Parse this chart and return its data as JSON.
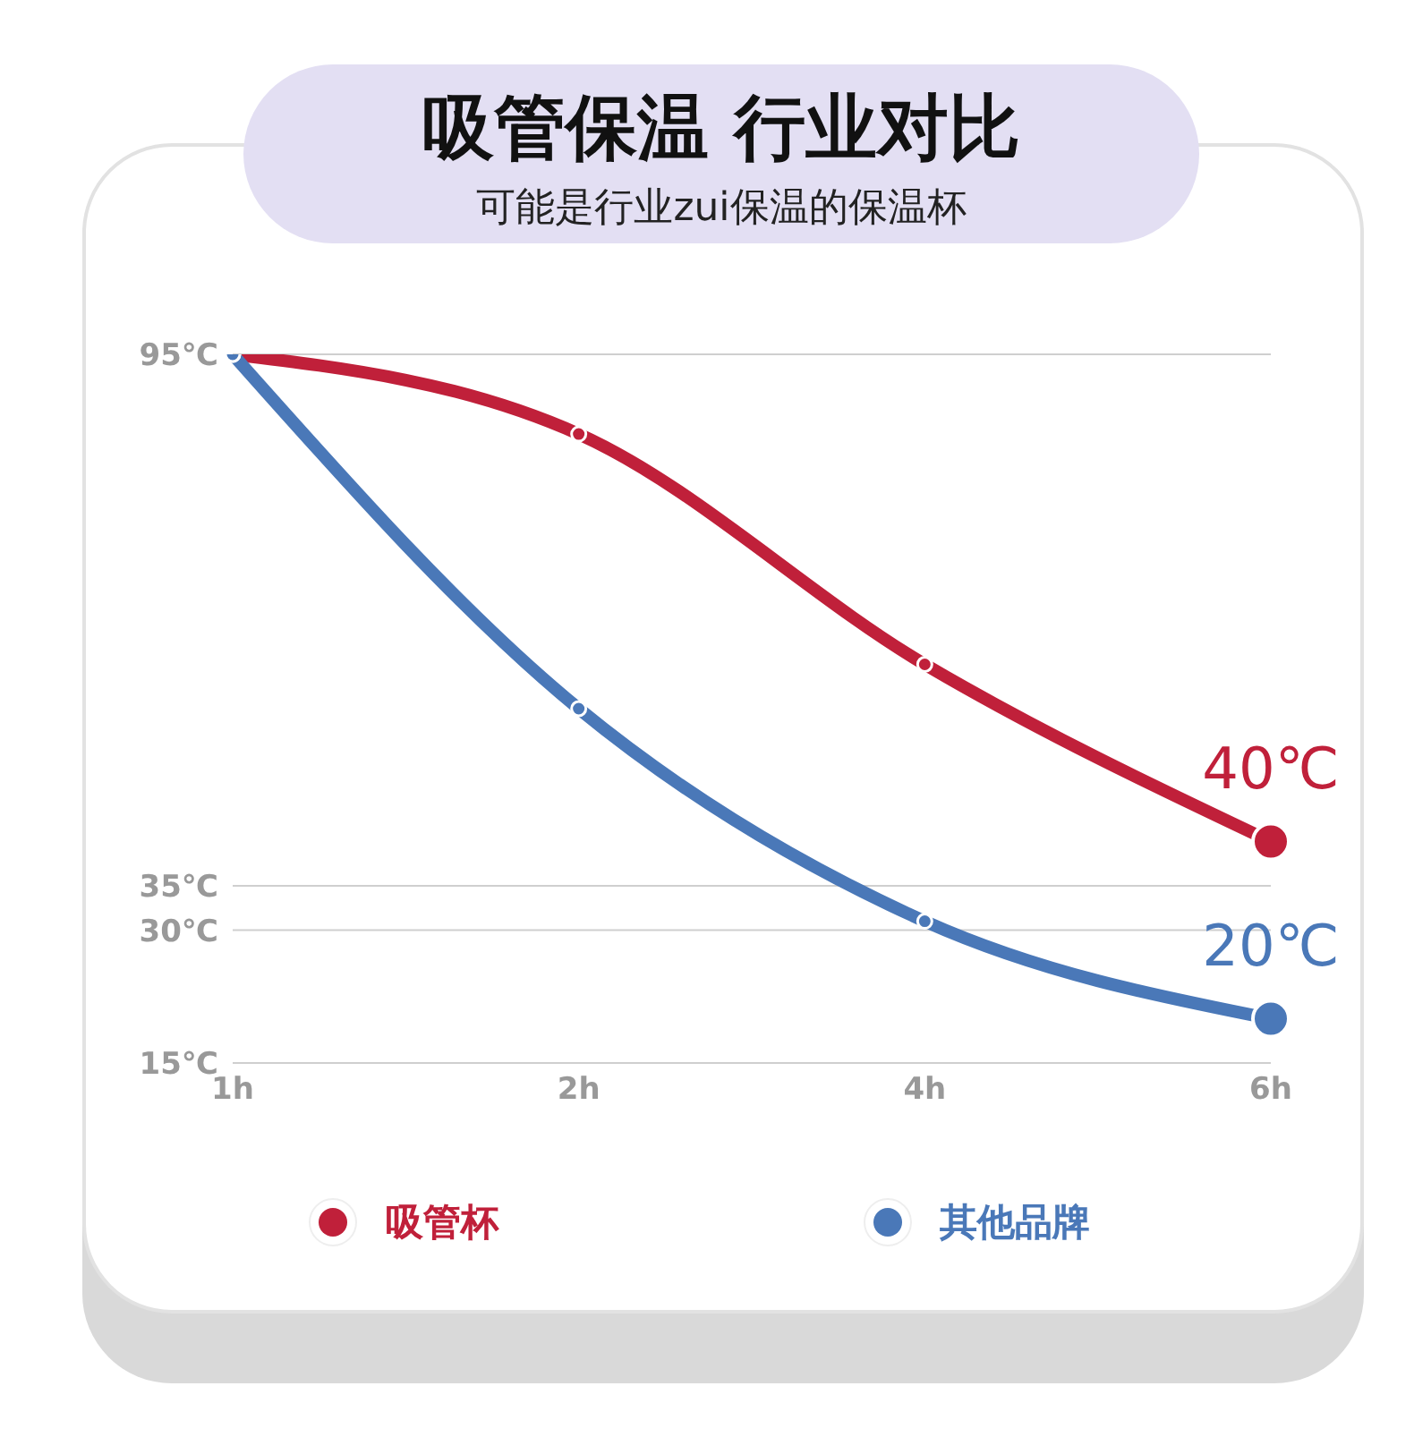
{
  "chart_data": {
    "type": "line",
    "title": "吸管保温 行业对比",
    "subtitle": "可能是行业zui保温的保温杯",
    "categories": [
      "1h",
      "2h",
      "4h",
      "6h"
    ],
    "series": [
      {
        "name": "吸管杯",
        "color": "#c0203a",
        "values": [
          95,
          86,
          60,
          40
        ],
        "value_labels": [
          null,
          null,
          null,
          "40℃"
        ]
      },
      {
        "name": "其他品牌",
        "color": "#4a78b8",
        "values": [
          95,
          55,
          31,
          20
        ],
        "value_labels": [
          null,
          null,
          null,
          "20℃"
        ]
      }
    ],
    "ylim": [
      15,
      95
    ],
    "yticks": [
      {
        "value": 15,
        "label": "15℃"
      },
      {
        "value": 30,
        "label": "30℃"
      },
      {
        "value": 35,
        "label": "35℃"
      },
      {
        "value": 95,
        "label": "95℃"
      }
    ],
    "grid": "y",
    "legend": "bottom",
    "marker": "circle",
    "line_style": "solid"
  }
}
